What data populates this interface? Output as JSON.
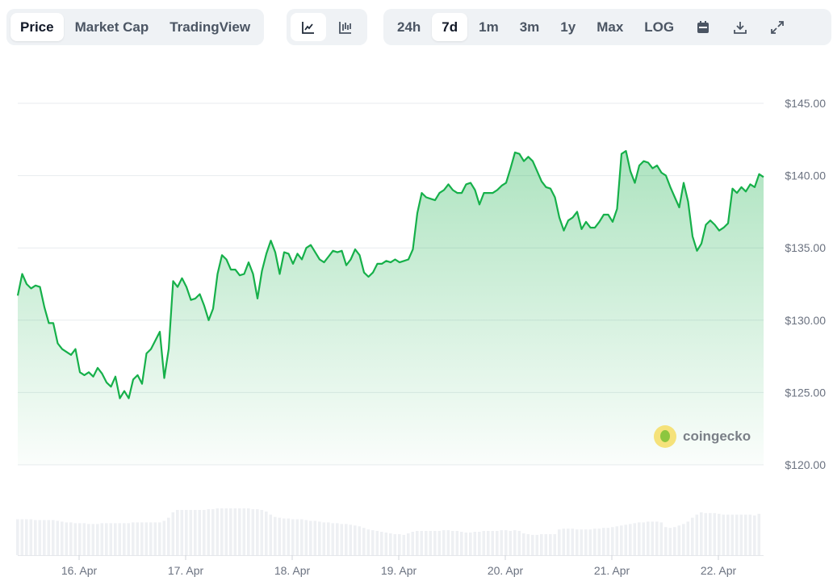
{
  "toolbar": {
    "view_tabs": [
      {
        "label": "Price",
        "active": true
      },
      {
        "label": "Market Cap",
        "active": false
      },
      {
        "label": "TradingView",
        "active": false
      }
    ],
    "chart_types": [
      {
        "icon": "line-chart-icon",
        "active": true
      },
      {
        "icon": "candlestick-chart-icon",
        "active": false
      }
    ],
    "ranges": [
      {
        "label": "24h",
        "active": false
      },
      {
        "label": "7d",
        "active": true
      },
      {
        "label": "1m",
        "active": false
      },
      {
        "label": "3m",
        "active": false
      },
      {
        "label": "1y",
        "active": false
      },
      {
        "label": "Max",
        "active": false
      },
      {
        "label": "LOG",
        "active": false
      }
    ],
    "actions": [
      "calendar-icon",
      "download-icon",
      "expand-icon"
    ]
  },
  "watermark": "coingecko",
  "colors": {
    "line": "#16b04a",
    "fill": "#16b04a",
    "volume": "#eef0f3",
    "grid": "#e8ebef",
    "text": "#6b7280"
  },
  "chart_data": {
    "type": "line",
    "title": "",
    "ylim": [
      120,
      145
    ],
    "y_ticks": [
      "$120.00",
      "$125.00",
      "$130.00",
      "$135.00",
      "$140.00",
      "$145.00"
    ],
    "y_tick_values": [
      120,
      125,
      130,
      135,
      140,
      145
    ],
    "x_ticks": [
      "16. Apr",
      "17. Apr",
      "18. Apr",
      "19. Apr",
      "20. Apr",
      "21. Apr",
      "22. Apr"
    ],
    "grid": true,
    "price": [
      131.7,
      133.2,
      132.5,
      132.2,
      132.4,
      132.3,
      130.9,
      129.8,
      129.8,
      128.4,
      128.0,
      127.8,
      127.6,
      128.0,
      126.4,
      126.2,
      126.4,
      126.1,
      126.7,
      126.3,
      125.7,
      125.4,
      126.1,
      124.6,
      125.1,
      124.6,
      125.9,
      126.2,
      125.6,
      127.7,
      128.0,
      128.6,
      129.2,
      126.0,
      128.0,
      132.7,
      132.3,
      132.9,
      132.3,
      131.4,
      131.5,
      131.8,
      131.0,
      130.0,
      130.8,
      133.2,
      134.5,
      134.2,
      133.5,
      133.5,
      133.1,
      133.2,
      134.0,
      133.2,
      131.5,
      133.4,
      134.6,
      135.5,
      134.7,
      133.2,
      134.7,
      134.6,
      133.9,
      134.6,
      134.2,
      135.0,
      135.2,
      134.7,
      134.2,
      134.0,
      134.4,
      134.8,
      134.7,
      134.8,
      133.8,
      134.2,
      134.9,
      134.5,
      133.3,
      133.0,
      133.3,
      133.9,
      133.9,
      134.1,
      134.0,
      134.2,
      134.0,
      134.1,
      134.2,
      134.9,
      137.4,
      138.8,
      138.5,
      138.4,
      138.3,
      138.8,
      139.0,
      139.4,
      139.0,
      138.8,
      138.8,
      139.4,
      139.5,
      139.0,
      138.0,
      138.8,
      138.8,
      138.8,
      139.0,
      139.3,
      139.5,
      140.5,
      141.6,
      141.5,
      141.0,
      141.3,
      141.0,
      140.3,
      139.6,
      139.2,
      139.1,
      138.5,
      137.1,
      136.2,
      136.9,
      137.1,
      137.5,
      136.3,
      136.8,
      136.4,
      136.4,
      136.8,
      137.3,
      137.3,
      136.8,
      137.7,
      141.5,
      141.7,
      140.3,
      139.5,
      140.7,
      141.0,
      140.9,
      140.5,
      140.7,
      140.2,
      140.0,
      139.2,
      138.5,
      137.8,
      139.5,
      138.2,
      135.8,
      134.8,
      135.3,
      136.6,
      136.9,
      136.6,
      136.2,
      136.4,
      136.7,
      139.1,
      138.8,
      139.2,
      138.9,
      139.4,
      139.2,
      140.1,
      139.9
    ],
    "volume_relative": [
      46,
      46,
      46,
      46,
      45,
      45,
      45,
      45,
      45,
      44,
      43,
      42,
      42,
      41,
      41,
      41,
      40,
      40,
      40,
      41,
      41,
      41,
      41,
      41,
      41,
      41,
      42,
      42,
      42,
      42,
      42,
      42,
      42,
      44,
      48,
      55,
      58,
      58,
      58,
      58,
      58,
      58,
      58,
      59,
      59,
      60,
      60,
      60,
      60,
      60,
      60,
      60,
      60,
      59,
      59,
      58,
      56,
      52,
      49,
      48,
      47,
      47,
      46,
      46,
      46,
      45,
      44,
      44,
      43,
      42,
      42,
      41,
      41,
      40,
      40,
      39,
      38,
      37,
      35,
      33,
      32,
      31,
      30,
      29,
      28,
      27,
      27,
      26,
      28,
      30,
      31,
      31,
      31,
      31,
      31,
      31,
      32,
      32,
      31,
      31,
      30,
      29,
      29,
      30,
      30,
      31,
      31,
      31,
      31,
      32,
      32,
      31,
      32,
      31,
      28,
      27,
      26,
      26,
      27,
      27,
      27,
      27,
      33,
      34,
      34,
      34,
      33,
      33,
      33,
      33,
      34,
      34,
      35,
      35,
      36,
      37,
      38,
      39,
      40,
      41,
      42,
      42,
      43,
      43,
      43,
      42,
      36,
      35,
      36,
      38,
      40,
      43,
      48,
      52,
      55,
      54,
      54,
      54,
      53,
      52,
      52,
      52,
      52,
      52,
      52,
      52,
      51,
      53
    ]
  }
}
